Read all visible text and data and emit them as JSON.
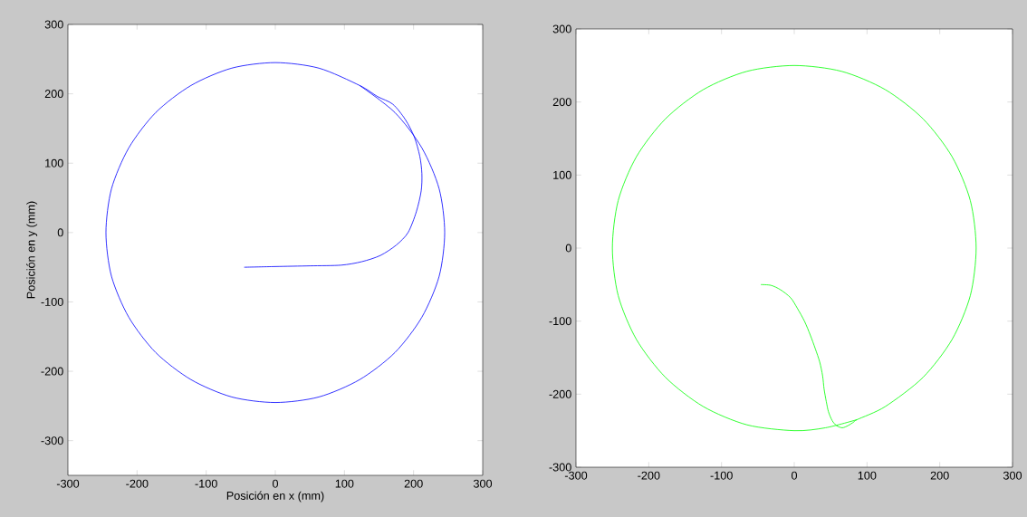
{
  "chart_data": [
    {
      "type": "line",
      "xlabel": "Posición en x (mm)",
      "ylabel": "Posición en y (mm)",
      "color": "#0000ff",
      "line_style": "solid",
      "xlim": [
        -300,
        300
      ],
      "ylim": [
        -350,
        300
      ],
      "xticks": [
        -300,
        -200,
        -100,
        0,
        100,
        200,
        300
      ],
      "yticks": [
        -300,
        -200,
        -100,
        0,
        100,
        200,
        300
      ],
      "x": [
        -45,
        0,
        50,
        95,
        125,
        152,
        175,
        192,
        204,
        211,
        212,
        209,
        201,
        188,
        170,
        148,
        122,
        63,
        0,
        -63,
        -122,
        -173,
        -212,
        -237,
        -245,
        -237,
        -212,
        -173,
        -122,
        -63,
        0,
        63,
        122,
        173,
        212,
        237,
        245,
        237,
        212,
        173,
        122
      ],
      "values": [
        -50,
        -49,
        -48,
        -47,
        -42,
        -33,
        -18,
        0,
        30,
        60,
        85,
        110,
        138,
        163,
        185,
        196,
        212,
        237,
        245,
        237,
        212,
        173,
        122,
        63,
        0,
        -63,
        -122,
        -173,
        -212,
        -237,
        -245,
        -237,
        -212,
        -173,
        -122,
        -63,
        0,
        63,
        122,
        173,
        212
      ]
    },
    {
      "type": "line",
      "color": "#00ff00",
      "line_style": "solid",
      "xlim": [
        -300,
        300
      ],
      "ylim": [
        -300,
        300
      ],
      "xticks": [
        -300,
        -200,
        -100,
        0,
        100,
        200,
        300
      ],
      "yticks": [
        -300,
        -200,
        -100,
        0,
        100,
        200,
        300
      ],
      "x": [
        -46,
        -32,
        -19,
        -5,
        4,
        14,
        22,
        29,
        35,
        39,
        41,
        44,
        47,
        52,
        58,
        66,
        74,
        82,
        86,
        125,
        177,
        217,
        242,
        250,
        242,
        217,
        177,
        125,
        65,
        0,
        -65,
        -125,
        -177,
        -217,
        -242,
        -250,
        -242,
        -217,
        -177,
        -125,
        -65,
        0,
        43,
        86
      ],
      "values": [
        -50,
        -51,
        -57,
        -68,
        -82,
        -100,
        -119,
        -138,
        -156,
        -175,
        -193,
        -210,
        -224,
        -236,
        -243,
        -246,
        -243,
        -238,
        -235,
        -217,
        -177,
        -125,
        -65,
        0,
        65,
        125,
        177,
        217,
        242,
        250,
        242,
        217,
        177,
        125,
        65,
        0,
        -65,
        -125,
        -177,
        -217,
        -242,
        -250,
        -246,
        -235
      ]
    }
  ]
}
